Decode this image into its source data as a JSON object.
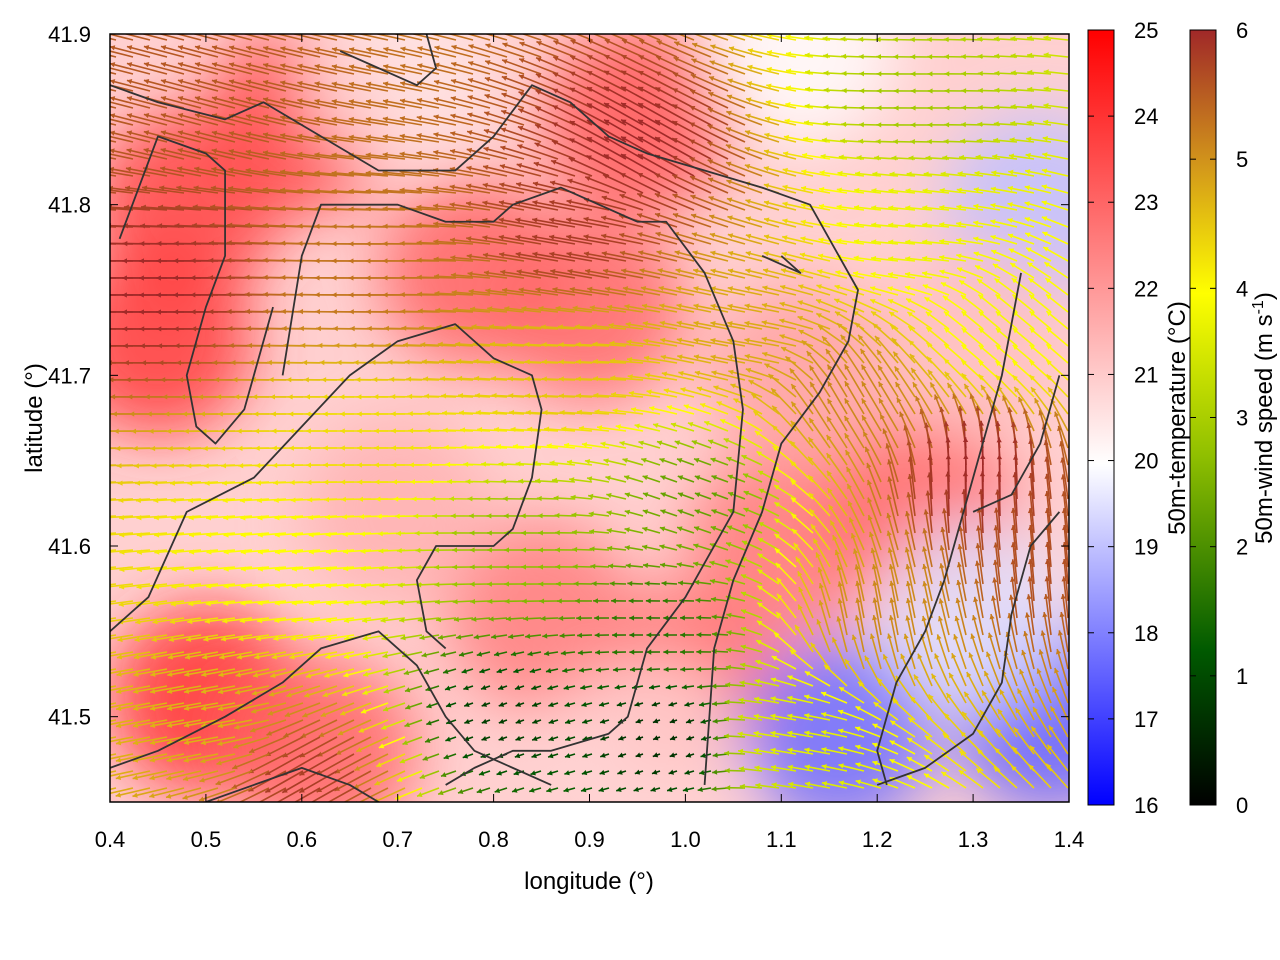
{
  "chart_data": {
    "type": "heatmap",
    "subtype": "vector-field-over-scalar-field",
    "xlabel": "longitude (°)",
    "ylabel": "latitude (°)",
    "xlim": [
      0.4,
      1.4
    ],
    "ylim": [
      41.45,
      41.9
    ],
    "x_ticks": [
      "0.4",
      "0.5",
      "0.6",
      "0.7",
      "0.8",
      "0.9",
      "1.0",
      "1.1",
      "1.2",
      "1.3",
      "1.4"
    ],
    "y_ticks": [
      "41.5",
      "41.6",
      "41.7",
      "41.8",
      "41.9"
    ],
    "grid": false,
    "temperature_colorbar": {
      "label": "50m-temperature (°C)",
      "range": [
        16,
        25
      ],
      "ticks": [
        "16",
        "17",
        "18",
        "19",
        "20",
        "21",
        "22",
        "23",
        "24",
        "25"
      ],
      "colors": [
        "#0000ff",
        "#ffffff",
        "#ff0000"
      ]
    },
    "wind_colorbar": {
      "label_main": "50m-wind speed (m s",
      "label_sup": "-1",
      "label_end": ")",
      "range": [
        0,
        6
      ],
      "ticks": [
        "0",
        "1",
        "2",
        "3",
        "4",
        "5",
        "6"
      ],
      "colors": [
        "#000000",
        "#006400",
        "#8fbf00",
        "#ffff00",
        "#d4a017",
        "#c06020",
        "#a02828"
      ]
    },
    "temperature_zones": [
      {
        "lon": 0.48,
        "lat": 41.8,
        "temp": 23.6
      },
      {
        "lon": 0.45,
        "lat": 41.72,
        "temp": 23.8
      },
      {
        "lon": 0.6,
        "lat": 41.85,
        "temp": 23.5
      },
      {
        "lon": 0.78,
        "lat": 41.76,
        "temp": 23.0
      },
      {
        "lon": 0.9,
        "lat": 41.74,
        "temp": 22.9
      },
      {
        "lon": 0.95,
        "lat": 41.85,
        "temp": 23.2
      },
      {
        "lon": 0.5,
        "lat": 41.51,
        "temp": 24.0
      },
      {
        "lon": 0.62,
        "lat": 41.48,
        "temp": 23.0
      },
      {
        "lon": 0.85,
        "lat": 41.56,
        "temp": 22.5
      },
      {
        "lon": 1.0,
        "lat": 41.52,
        "temp": 22.8
      },
      {
        "lon": 1.1,
        "lat": 41.6,
        "temp": 22.6
      },
      {
        "lon": 1.25,
        "lat": 41.62,
        "temp": 22.9
      },
      {
        "lon": 1.12,
        "lat": 41.7,
        "temp": 21.8
      },
      {
        "lon": 0.7,
        "lat": 41.62,
        "temp": 21.5
      },
      {
        "lon": 1.16,
        "lat": 41.49,
        "temp": 17.7
      },
      {
        "lon": 1.38,
        "lat": 41.5,
        "temp": 17.5
      },
      {
        "lon": 1.37,
        "lat": 41.8,
        "temp": 19.0
      },
      {
        "lon": 1.12,
        "lat": 41.89,
        "temp": 20.0
      },
      {
        "lon": 0.7,
        "lat": 41.88,
        "temp": 20.5
      },
      {
        "lon": 1.3,
        "lat": 41.56,
        "temp": 19.5
      },
      {
        "lon": 0.96,
        "lat": 41.48,
        "temp": 20.8
      },
      {
        "lon": 1.3,
        "lat": 41.72,
        "temp": 21.2
      }
    ],
    "wind_zones": [
      {
        "lon": 0.48,
        "lat": 41.75,
        "speed": 6.0,
        "dir_deg": 180
      },
      {
        "lon": 0.5,
        "lat": 41.86,
        "speed": 5.5,
        "dir_deg": 165
      },
      {
        "lon": 0.7,
        "lat": 41.76,
        "speed": 5.2,
        "dir_deg": 180
      },
      {
        "lon": 0.9,
        "lat": 41.78,
        "speed": 5.8,
        "dir_deg": 170
      },
      {
        "lon": 0.97,
        "lat": 41.83,
        "speed": 6.0,
        "dir_deg": 150
      },
      {
        "lon": 0.68,
        "lat": 41.66,
        "speed": 4.0,
        "dir_deg": 180
      },
      {
        "lon": 0.9,
        "lat": 41.7,
        "speed": 4.3,
        "dir_deg": 178
      },
      {
        "lon": 0.6,
        "lat": 41.59,
        "speed": 3.6,
        "dir_deg": 185
      },
      {
        "lon": 0.84,
        "lat": 41.6,
        "speed": 2.4,
        "dir_deg": 180
      },
      {
        "lon": 0.98,
        "lat": 41.55,
        "speed": 1.5,
        "dir_deg": 180
      },
      {
        "lon": 0.98,
        "lat": 41.49,
        "speed": 0.6,
        "dir_deg": 200
      },
      {
        "lon": 0.81,
        "lat": 41.5,
        "speed": 0.8,
        "dir_deg": 200
      },
      {
        "lon": 0.52,
        "lat": 41.5,
        "speed": 4.5,
        "dir_deg": 190
      },
      {
        "lon": 0.62,
        "lat": 41.47,
        "speed": 5.8,
        "dir_deg": 210
      },
      {
        "lon": 1.18,
        "lat": 41.68,
        "speed": 5.0,
        "dir_deg": 120
      },
      {
        "lon": 1.3,
        "lat": 41.63,
        "speed": 6.0,
        "dir_deg": 90
      },
      {
        "lon": 1.38,
        "lat": 41.58,
        "speed": 5.6,
        "dir_deg": 95
      },
      {
        "lon": 1.2,
        "lat": 41.55,
        "speed": 5.0,
        "dir_deg": 100
      },
      {
        "lon": 1.12,
        "lat": 41.49,
        "speed": 3.3,
        "dir_deg": 170
      },
      {
        "lon": 1.25,
        "lat": 41.86,
        "speed": 2.6,
        "dir_deg": 180
      },
      {
        "lon": 1.25,
        "lat": 41.78,
        "speed": 3.4,
        "dir_deg": 175
      },
      {
        "lon": 1.34,
        "lat": 41.72,
        "speed": 3.5,
        "dir_deg": 140
      },
      {
        "lon": 1.08,
        "lat": 41.72,
        "speed": 4.6,
        "dir_deg": 170
      },
      {
        "lon": 1.02,
        "lat": 41.63,
        "speed": 2.0,
        "dir_deg": 160
      }
    ],
    "contours": [
      [
        [
          0.4,
          41.87
        ],
        [
          0.45,
          41.86
        ],
        [
          0.52,
          41.85
        ],
        [
          0.56,
          41.86
        ],
        [
          0.62,
          41.84
        ],
        [
          0.68,
          41.82
        ],
        [
          0.76,
          41.82
        ],
        [
          0.8,
          41.84
        ],
        [
          0.84,
          41.87
        ],
        [
          0.88,
          41.86
        ],
        [
          0.92,
          41.84
        ],
        [
          0.96,
          41.83
        ],
        [
          1.02,
          41.82
        ],
        [
          1.08,
          41.81
        ],
        [
          1.13,
          41.8
        ],
        [
          1.16,
          41.77
        ],
        [
          1.18,
          41.75
        ],
        [
          1.17,
          41.72
        ],
        [
          1.14,
          41.69
        ],
        [
          1.1,
          41.66
        ],
        [
          1.08,
          41.62
        ],
        [
          1.05,
          41.58
        ],
        [
          1.03,
          41.54
        ],
        [
          1.02,
          41.46
        ]
      ],
      [
        [
          0.41,
          41.78
        ],
        [
          0.45,
          41.84
        ],
        [
          0.5,
          41.83
        ],
        [
          0.52,
          41.82
        ],
        [
          0.52,
          41.77
        ],
        [
          0.5,
          41.74
        ],
        [
          0.48,
          41.7
        ],
        [
          0.49,
          41.67
        ],
        [
          0.51,
          41.66
        ],
        [
          0.54,
          41.68
        ],
        [
          0.56,
          41.72
        ],
        [
          0.57,
          41.74
        ]
      ],
      [
        [
          0.58,
          41.7
        ],
        [
          0.6,
          41.77
        ],
        [
          0.62,
          41.8
        ],
        [
          0.7,
          41.8
        ],
        [
          0.75,
          41.79
        ],
        [
          0.8,
          41.79
        ],
        [
          0.82,
          41.8
        ],
        [
          0.87,
          41.81
        ],
        [
          0.95,
          41.79
        ],
        [
          0.98,
          41.79
        ],
        [
          1.02,
          41.76
        ],
        [
          1.05,
          41.72
        ],
        [
          1.06,
          41.68
        ],
        [
          1.05,
          41.62
        ],
        [
          1.0,
          41.57
        ],
        [
          0.96,
          41.54
        ],
        [
          0.94,
          41.5
        ],
        [
          0.92,
          41.49
        ],
        [
          0.86,
          41.48
        ],
        [
          0.82,
          41.48
        ],
        [
          0.78,
          41.47
        ],
        [
          0.75,
          41.46
        ]
      ],
      [
        [
          0.4,
          41.55
        ],
        [
          0.44,
          41.57
        ],
        [
          0.48,
          41.62
        ],
        [
          0.55,
          41.64
        ],
        [
          0.6,
          41.67
        ],
        [
          0.65,
          41.7
        ],
        [
          0.7,
          41.72
        ],
        [
          0.76,
          41.73
        ],
        [
          0.8,
          41.71
        ],
        [
          0.84,
          41.7
        ],
        [
          0.85,
          41.68
        ],
        [
          0.84,
          41.64
        ],
        [
          0.82,
          41.61
        ],
        [
          0.8,
          41.6
        ],
        [
          0.74,
          41.6
        ],
        [
          0.72,
          41.58
        ],
        [
          0.73,
          41.55
        ],
        [
          0.75,
          41.54
        ]
      ],
      [
        [
          0.4,
          41.47
        ],
        [
          0.45,
          41.48
        ],
        [
          0.52,
          41.5
        ],
        [
          0.58,
          41.52
        ],
        [
          0.62,
          41.54
        ],
        [
          0.68,
          41.55
        ],
        [
          0.72,
          41.53
        ],
        [
          0.75,
          41.5
        ],
        [
          0.78,
          41.48
        ],
        [
          0.82,
          41.47
        ],
        [
          0.86,
          41.46
        ]
      ],
      [
        [
          0.5,
          41.45
        ],
        [
          0.55,
          41.46
        ],
        [
          0.6,
          41.47
        ],
        [
          0.65,
          41.46
        ],
        [
          0.68,
          41.45
        ]
      ],
      [
        [
          1.2,
          41.46
        ],
        [
          1.25,
          41.47
        ],
        [
          1.3,
          41.49
        ],
        [
          1.33,
          41.52
        ],
        [
          1.34,
          41.56
        ],
        [
          1.36,
          41.6
        ],
        [
          1.39,
          41.62
        ]
      ],
      [
        [
          1.35,
          41.76
        ],
        [
          1.33,
          41.7
        ],
        [
          1.31,
          41.66
        ],
        [
          1.29,
          41.62
        ],
        [
          1.27,
          41.58
        ],
        [
          1.25,
          41.55
        ],
        [
          1.22,
          41.52
        ],
        [
          1.2,
          41.48
        ],
        [
          1.21,
          41.46
        ]
      ],
      [
        [
          1.1,
          41.77
        ],
        [
          1.12,
          41.76
        ],
        [
          1.08,
          41.77
        ]
      ],
      [
        [
          0.64,
          41.89
        ],
        [
          0.68,
          41.88
        ],
        [
          0.72,
          41.87
        ],
        [
          0.74,
          41.88
        ],
        [
          0.73,
          41.9
        ]
      ],
      [
        [
          1.3,
          41.62
        ],
        [
          1.34,
          41.63
        ],
        [
          1.37,
          41.66
        ],
        [
          1.39,
          41.7
        ]
      ]
    ]
  }
}
